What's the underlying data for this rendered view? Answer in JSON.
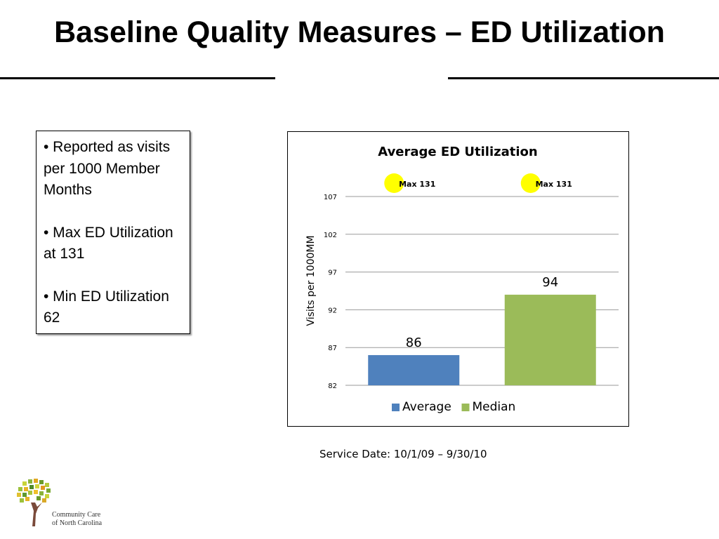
{
  "slide": {
    "title": "Baseline Quality Measures – ED Utilization",
    "notes": [
      "• Reported as visits per 1000 Member Months",
      "• Max ED Utilization at 131",
      "• Min ED Utilization 62"
    ],
    "service_date": "Service Date: 10/1/09 – 9/30/10",
    "logo_text_line1": "Community Care",
    "logo_text_line2": "of North Carolina"
  },
  "chart_data": {
    "type": "bar",
    "title": "Average ED Utilization",
    "ylabel": "Visits per 1000MM",
    "xlabel": "",
    "ylim": [
      82,
      107
    ],
    "yticks": [
      82,
      87,
      92,
      97,
      102,
      107
    ],
    "grid": true,
    "legend_position": "bottom",
    "series": [
      {
        "name": "Average",
        "value": 86,
        "label": "86",
        "color": "#4f81bd"
      },
      {
        "name": "Median",
        "value": 94,
        "label": "94",
        "color": "#9bbb59"
      }
    ],
    "annotations": [
      {
        "text": "Max 131",
        "marker_color": "#ffff00",
        "series": "Average"
      },
      {
        "text": "Max 131",
        "marker_color": "#ffff00",
        "series": "Median"
      }
    ]
  }
}
